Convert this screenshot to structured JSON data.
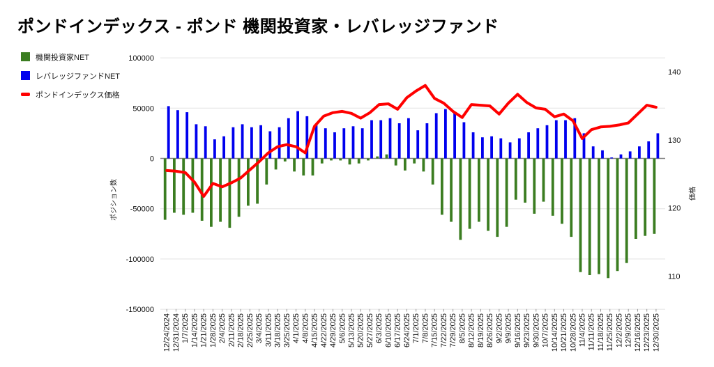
{
  "header": {
    "title": "ポンドインデックス - ポンド 機関投資家・レバレッジファンド"
  },
  "chart_data": {
    "type": "bar+line",
    "title": "ポンドインデックス - ポンド 機関投資家・レバレッジファンド",
    "legend_position": "top-left",
    "categories": [
      "12/24/2024",
      "12/31/2024",
      "1/7/2025",
      "1/14/2025",
      "1/21/2025",
      "1/28/2025",
      "2/4/2025",
      "2/11/2025",
      "2/18/2025",
      "2/25/2025",
      "3/4/2025",
      "3/11/2025",
      "3/18/2025",
      "3/25/2025",
      "4/1/2025",
      "4/8/2025",
      "4/15/2025",
      "4/22/2025",
      "4/29/2025",
      "5/6/2025",
      "5/13/2025",
      "5/20/2025",
      "5/27/2025",
      "6/3/2025",
      "6/10/2025",
      "6/17/2025",
      "6/24/2025",
      "7/1/2025",
      "7/8/2025",
      "7/15/2025",
      "7/22/2025",
      "7/29/2025",
      "8/5/2025",
      "8/12/2025",
      "8/19/2025",
      "8/26/2025",
      "9/2/2025",
      "9/9/2025",
      "9/16/2025",
      "9/23/2025",
      "9/30/2025",
      "10/7/2025",
      "10/14/2025",
      "10/21/2025",
      "10/28/2025",
      "11/4/2025",
      "11/11/2025",
      "11/18/2025",
      "11/25/2025",
      "12/2/2025",
      "12/9/2025",
      "12/16/2025",
      "12/23/2025",
      "12/30/2025"
    ],
    "series": [
      {
        "name": "機関投資家NET",
        "type": "bar",
        "axis": "left",
        "color": "#3b7d21",
        "values": [
          -61000,
          -54000,
          -56000,
          -54000,
          -62000,
          -68000,
          -63000,
          -69000,
          -58000,
          -47000,
          -45000,
          -26000,
          -11000,
          -3000,
          -13000,
          -17000,
          -17000,
          -5000,
          -2000,
          -2000,
          -6000,
          -5000,
          -2000,
          2000,
          4000,
          -7000,
          -12000,
          -5000,
          -13000,
          -26000,
          -56000,
          -63000,
          -81000,
          -70000,
          -63000,
          -72000,
          -78000,
          -68000,
          -41000,
          -44000,
          -55000,
          -43000,
          -57000,
          -65000,
          -78000,
          -113000,
          -116000,
          -115000,
          -119000,
          -112000,
          -104000,
          -80000,
          -77000,
          -75000
        ]
      },
      {
        "name": "レバレッジファンドNET",
        "type": "bar",
        "axis": "left",
        "color": "#0000ee",
        "values": [
          52000,
          48000,
          46000,
          34000,
          32000,
          19000,
          22000,
          31000,
          34000,
          31000,
          33000,
          27000,
          31000,
          40000,
          47000,
          42000,
          33000,
          30000,
          26000,
          30000,
          32000,
          30000,
          38000,
          38000,
          40000,
          35000,
          40000,
          28000,
          35000,
          45000,
          49000,
          46000,
          36000,
          26000,
          21000,
          22000,
          20000,
          16000,
          20000,
          26000,
          30000,
          33000,
          38000,
          38000,
          40000,
          25000,
          12000,
          8000,
          1000,
          4000,
          7000,
          12000,
          17000,
          25000
        ]
      },
      {
        "name": "ポンドインデックス価格",
        "type": "line",
        "axis": "right",
        "color": "#ff0000",
        "values": [
          125.5,
          125.4,
          125.2,
          123.8,
          121.7,
          123.6,
          123.1,
          123.7,
          124.4,
          125.6,
          126.8,
          128.1,
          129.0,
          129.3,
          129.0,
          128.1,
          132.0,
          133.5,
          134.0,
          134.2,
          133.9,
          133.2,
          134.0,
          135.2,
          135.3,
          134.5,
          136.2,
          137.2,
          138.0,
          136.1,
          135.4,
          134.2,
          133.3,
          135.2,
          135.1,
          135.0,
          133.8,
          135.4,
          136.7,
          135.5,
          134.7,
          134.5,
          133.4,
          133.8,
          132.8,
          130.2,
          131.5,
          131.9,
          132.0,
          132.2,
          132.5,
          133.8,
          135.1,
          134.8
        ]
      }
    ],
    "left_axis": {
      "title": "ポジション数",
      "ticks": [
        100000,
        50000,
        0,
        -50000,
        -100000,
        -150000
      ],
      "range": [
        -150000,
        100000
      ],
      "grid": true
    },
    "right_axis": {
      "title": "価格",
      "ticks": [
        140,
        130,
        120,
        110
      ],
      "range": [
        105,
        142
      ],
      "grid": false
    }
  }
}
